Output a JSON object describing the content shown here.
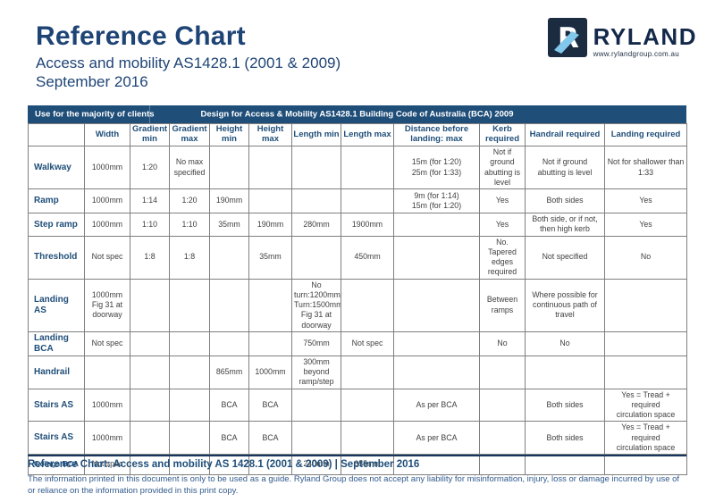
{
  "page": {
    "title": "Reference Chart",
    "subtitle": "Access and mobility AS1428.1 (2001 & 2009)",
    "date": "September 2016"
  },
  "logo": {
    "brand": "RYLAND",
    "url": "www.rylandgroup.com.au",
    "mark_icon": "ryland-r-monogram",
    "colors": {
      "square": "#1b2b40",
      "slash": "#82c7ec",
      "brand_text": "#14294a"
    }
  },
  "band": {
    "left": "Use for the majority of clients",
    "right": "Design for Access & Mobility AS1428.1 Building Code of Australia (BCA) 2009",
    "bg": "#1f4e79"
  },
  "table": {
    "columns": [
      "",
      "Width",
      "Gradient\nmin",
      "Gradient\nmax",
      "Height\nmin",
      "Height\nmax",
      "Length min",
      "Length max",
      "Distance before\nlanding: max",
      "Kerb\nrequired",
      "Handrail required",
      "Landing required"
    ],
    "rows": [
      {
        "label": "Walkway",
        "cells": [
          "1000mm",
          "1:20",
          "No max\nspecified",
          "",
          "",
          "",
          "",
          "15m (for 1:20)\n25m (for 1:33)",
          "Not if ground\nabutting is\nlevel",
          "Not if ground\nabutting is level",
          "Not for shallower than\n1:33"
        ]
      },
      {
        "label": "Ramp",
        "cells": [
          "1000mm",
          "1:14",
          "1:20",
          "190mm",
          "",
          "",
          "",
          "9m (for 1:14)\n15m (for 1:20)",
          "Yes",
          "Both sides",
          "Yes"
        ]
      },
      {
        "label": "Step ramp",
        "cells": [
          "1000mm",
          "1:10",
          "1:10",
          "35mm",
          "190mm",
          "280mm",
          "1900mm",
          "",
          "Yes",
          "Both side, or if not,\nthen high kerb",
          "Yes"
        ]
      },
      {
        "label": "Threshold",
        "cells": [
          "Not spec",
          "1:8",
          "1:8",
          "",
          "35mm",
          "",
          "450mm",
          "",
          "No. Tapered\nedges\nrequired",
          "Not specified",
          "No"
        ]
      },
      {
        "label": "Landing AS",
        "cells": [
          "1000mm\nFig 31 at\ndoorway",
          "",
          "",
          "",
          "",
          "No\nturn:1200mm\nTurn:1500mm\nFig 31 at\ndoorway",
          "",
          "",
          "Between\nramps",
          "Where possible  for\ncontinuous path of\ntravel",
          ""
        ]
      },
      {
        "label": "Landing\nBCA",
        "cells": [
          "Not spec",
          "",
          "",
          "",
          "",
          "750mm",
          "Not spec",
          "",
          "No",
          "No",
          ""
        ]
      },
      {
        "label": "Handrail",
        "cells": [
          "",
          "",
          "",
          "865mm",
          "1000mm",
          "300mm\nbeyond\nramp/step",
          "",
          "",
          "",
          "",
          ""
        ]
      },
      {
        "label": "Stairs AS",
        "cells": [
          "1000mm",
          "",
          "",
          "BCA",
          "BCA",
          "",
          "",
          "As per BCA",
          "",
          "Both sides",
          "Yes = Tread + required\ncirculation space"
        ]
      },
      {
        "label": "Stairs AS",
        "cells": [
          "1000mm",
          "",
          "",
          "BCA",
          "BCA",
          "",
          "",
          "As per BCA",
          "",
          "Both sides",
          "Yes = Tread + required\ncirculation space"
        ]
      },
      {
        "label": "Goings BCA",
        "cells": [
          "Not spec",
          "",
          "",
          "",
          "",
          "240mm",
          "355mm",
          "",
          "",
          "",
          ""
        ]
      }
    ]
  },
  "footer": {
    "title": "Reference Chart: Access and mobility AS 1428.1 (2001 & 2009) | September 2016",
    "disclaimer": "The information printed in this document is only to be used as a guide. Ryland Group does not accept any liability for misinformation, injury, loss or damage incurred by use of or reliance on the information provided in this print copy."
  },
  "colors": {
    "title_navy": "#1e4476",
    "band_navy": "#1f4e79",
    "cell_text": "#404040",
    "border_gray": "#7f7f7f"
  }
}
